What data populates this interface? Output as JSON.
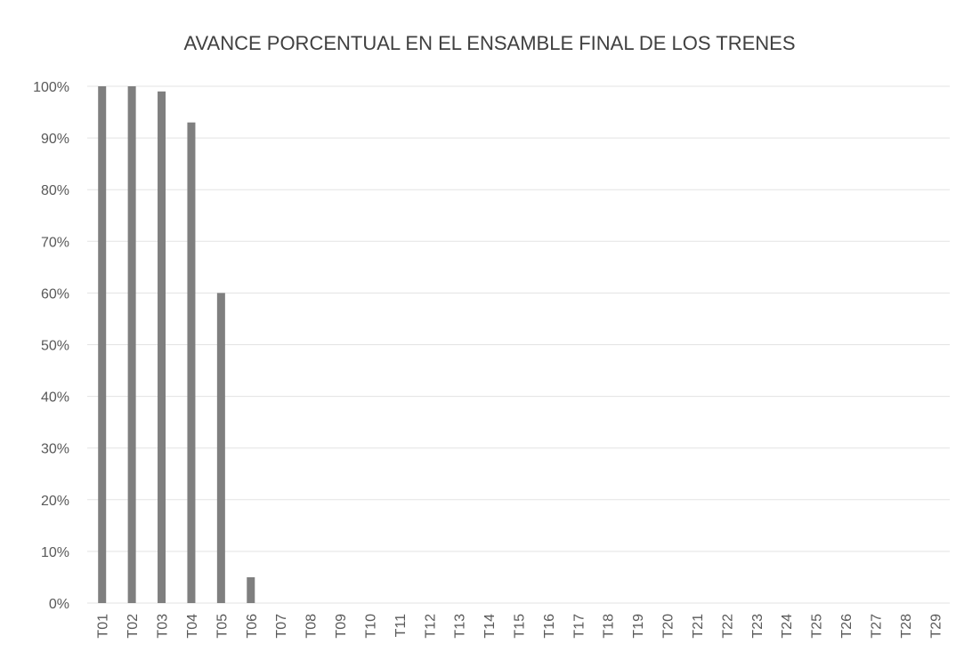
{
  "chart_data": {
    "type": "bar",
    "title": "AVANCE PORCENTUAL EN EL ENSAMBLE FINAL DE LOS TRENES",
    "categories": [
      "T01",
      "T02",
      "T03",
      "T04",
      "T05",
      "T06",
      "T07",
      "T08",
      "T09",
      "T10",
      "T11",
      "T12",
      "T13",
      "T14",
      "T15",
      "T16",
      "T17",
      "T18",
      "T19",
      "T20",
      "T21",
      "T22",
      "T23",
      "T24",
      "T25",
      "T26",
      "T27",
      "T28",
      "T29"
    ],
    "values": [
      100,
      100,
      99,
      93,
      60,
      5,
      0,
      0,
      0,
      0,
      0,
      0,
      0,
      0,
      0,
      0,
      0,
      0,
      0,
      0,
      0,
      0,
      0,
      0,
      0,
      0,
      0,
      0,
      0
    ],
    "color": "#7f7f7f",
    "ylim": [
      0,
      100
    ],
    "yticks": [
      {
        "value": 0,
        "label": "0%"
      },
      {
        "value": 10,
        "label": "10%"
      },
      {
        "value": 20,
        "label": "20%"
      },
      {
        "value": 30,
        "label": "30%"
      },
      {
        "value": 40,
        "label": "40%"
      },
      {
        "value": 50,
        "label": "50%"
      },
      {
        "value": 60,
        "label": "60%"
      },
      {
        "value": 70,
        "label": "70%"
      },
      {
        "value": 80,
        "label": "80%"
      },
      {
        "value": 90,
        "label": "90%"
      },
      {
        "value": 100,
        "label": "100%"
      }
    ],
    "grid": true
  }
}
